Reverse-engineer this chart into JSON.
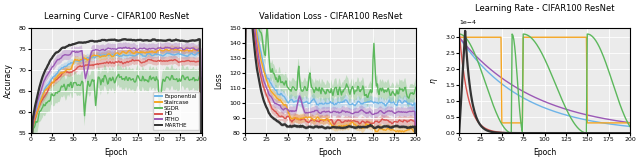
{
  "colors": {
    "Exponential": "#6EB4E8",
    "Staircase": "#F5A623",
    "SGDR": "#5CB85C",
    "HD": "#D9534F",
    "RTHO": "#9B59B6",
    "MARTHE": "#333333"
  },
  "legend_labels": [
    "Exponential",
    "Staircase",
    "SGDR",
    "HD",
    "RTHO",
    "MARTHE"
  ],
  "figsize": [
    6.4,
    1.61
  ],
  "dpi": 100,
  "acc_ylim": [
    55,
    80
  ],
  "loss_ylim": [
    80,
    150
  ],
  "lr_ylim": [
    0,
    0.00033
  ],
  "xlim": [
    0,
    200
  ],
  "xticks": [
    0,
    25,
    50,
    75,
    100,
    125,
    150,
    175,
    200
  ]
}
